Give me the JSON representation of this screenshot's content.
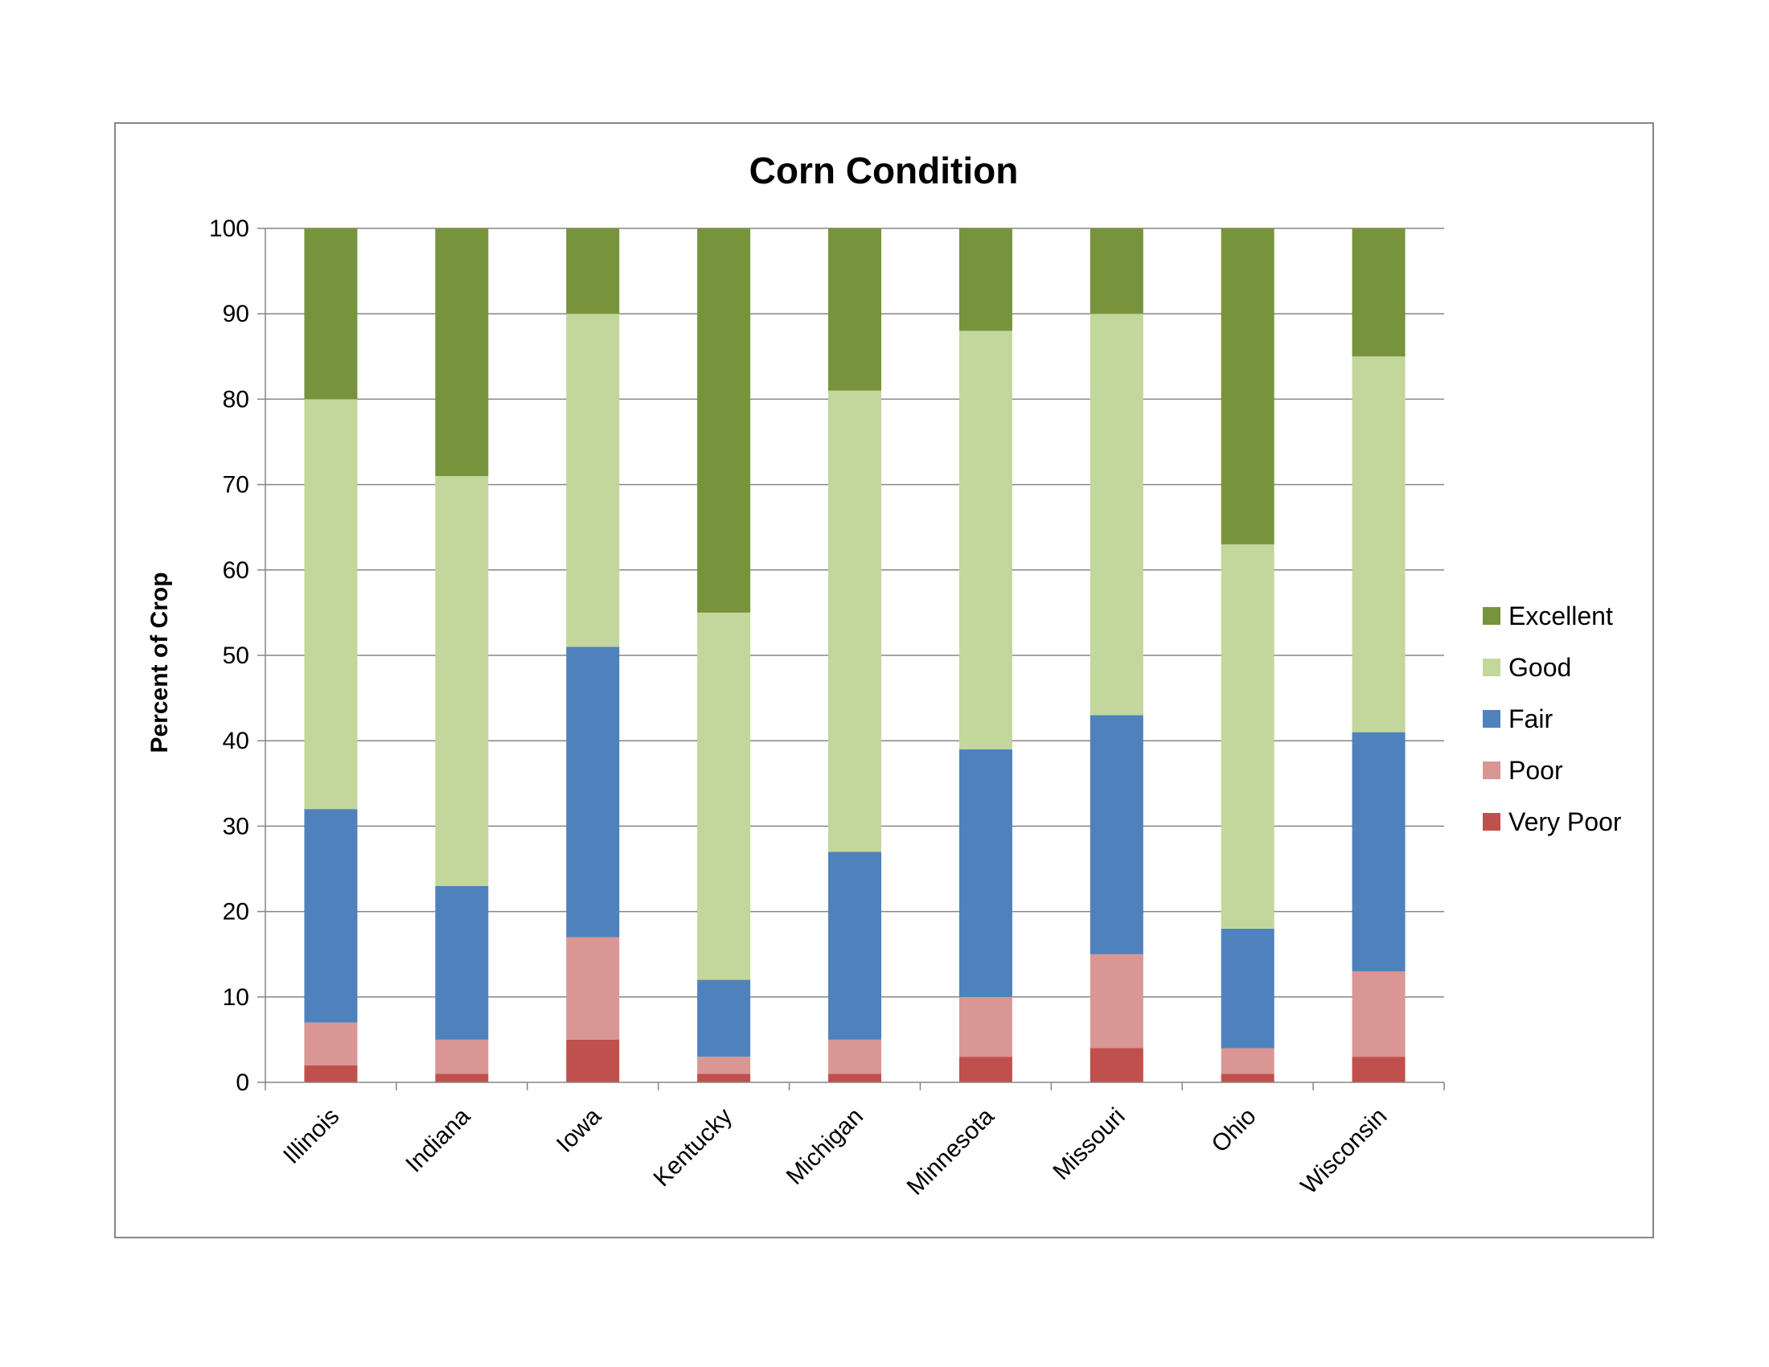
{
  "chart_data": {
    "type": "bar",
    "stacked": true,
    "title": "Corn Condition",
    "xlabel": "",
    "ylabel": "Percent of Crop",
    "ylim": [
      0,
      100
    ],
    "yticks": [
      0,
      10,
      20,
      30,
      40,
      50,
      60,
      70,
      80,
      90,
      100
    ],
    "grid": true,
    "legend_position": "right",
    "categories": [
      "Illinois",
      "Indiana",
      "Iowa",
      "Kentucky",
      "Michigan",
      "Minnesota",
      "Missouri",
      "Ohio",
      "Wisconsin"
    ],
    "series": [
      {
        "name": "Very Poor",
        "color": "#C0504D",
        "values": [
          2,
          1,
          5,
          1,
          1,
          3,
          4,
          1,
          3
        ]
      },
      {
        "name": "Poor",
        "color": "#D99694",
        "values": [
          5,
          4,
          12,
          2,
          4,
          7,
          11,
          3,
          10
        ]
      },
      {
        "name": "Fair",
        "color": "#4F81BD",
        "values": [
          25,
          18,
          34,
          9,
          22,
          29,
          28,
          14,
          28
        ]
      },
      {
        "name": "Good",
        "color": "#C3D69B",
        "values": [
          48,
          48,
          39,
          43,
          54,
          49,
          47,
          45,
          44
        ]
      },
      {
        "name": "Excellent",
        "color": "#77933C",
        "values": [
          20,
          29,
          10,
          45,
          19,
          12,
          10,
          37,
          15
        ]
      }
    ],
    "legend_order": [
      "Excellent",
      "Good",
      "Fair",
      "Poor",
      "Very Poor"
    ]
  }
}
